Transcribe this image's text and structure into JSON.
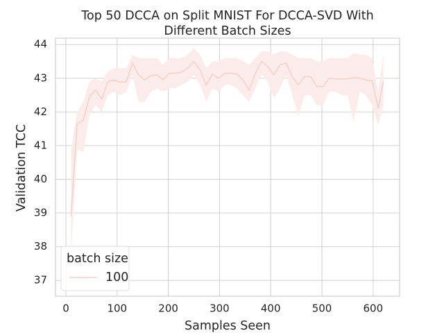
{
  "chart_data": {
    "type": "line",
    "title": [
      "Top 50 DCCA on Split MNIST For DCCA-SVD With",
      "Different Batch Sizes"
    ],
    "x_label": "Samples Seen",
    "y_label": "Validation TCC",
    "legend_title": "batch size",
    "legend_loc": "lower left",
    "grid": true,
    "x": [
      10,
      22,
      34,
      46,
      58,
      70,
      82,
      94,
      106,
      118,
      130,
      142,
      154,
      166,
      178,
      190,
      202,
      214,
      226,
      238,
      250,
      262,
      274,
      286,
      298,
      310,
      322,
      334,
      346,
      358,
      370,
      382,
      394,
      406,
      418,
      430,
      442,
      454,
      466,
      478,
      490,
      502,
      514,
      526,
      538,
      550,
      562,
      574,
      586,
      598,
      610,
      620
    ],
    "series": [
      {
        "name": "100",
        "color": "#f2cfca",
        "band_color": "#fbeceb",
        "values": [
          38.9,
          41.65,
          41.75,
          42.45,
          42.65,
          42.38,
          42.9,
          42.95,
          42.88,
          42.9,
          43.45,
          43.1,
          42.95,
          43.08,
          43.1,
          42.95,
          43.15,
          43.15,
          43.18,
          43.3,
          43.5,
          43.25,
          42.8,
          43.12,
          43.0,
          43.15,
          43.15,
          43.12,
          42.95,
          42.65,
          43.15,
          43.5,
          43.35,
          43.1,
          43.4,
          43.45,
          43.05,
          42.8,
          43.05,
          43.05,
          42.75,
          42.75,
          43.0,
          42.98,
          42.97,
          42.98,
          43.02,
          43.0,
          42.95,
          42.93,
          42.1,
          42.9
        ],
        "ci_lower": [
          37.8,
          40.9,
          40.8,
          41.9,
          42.2,
          42.0,
          42.5,
          42.6,
          42.5,
          42.6,
          43.1,
          42.3,
          42.3,
          42.6,
          42.7,
          42.6,
          42.7,
          42.7,
          42.8,
          42.9,
          43.1,
          42.8,
          42.3,
          42.7,
          42.6,
          42.8,
          42.8,
          42.7,
          42.5,
          42.3,
          42.7,
          43.1,
          42.9,
          42.4,
          42.7,
          43.1,
          42.5,
          41.9,
          42.5,
          42.5,
          42.2,
          42.2,
          42.6,
          42.6,
          42.5,
          42.5,
          41.7,
          42.6,
          42.5,
          42.2,
          41.6,
          42.2
        ],
        "ci_upper": [
          40.9,
          42.0,
          42.3,
          42.9,
          43.0,
          42.9,
          43.2,
          43.3,
          43.3,
          43.3,
          43.7,
          43.6,
          43.6,
          43.6,
          43.6,
          43.4,
          43.6,
          43.6,
          43.6,
          43.7,
          43.9,
          43.7,
          43.3,
          43.5,
          43.5,
          43.6,
          43.6,
          43.6,
          43.5,
          43.4,
          43.6,
          43.8,
          43.8,
          43.7,
          43.8,
          43.8,
          43.7,
          43.6,
          43.6,
          43.6,
          43.5,
          43.5,
          43.6,
          43.6,
          43.6,
          43.6,
          43.75,
          43.7,
          43.7,
          43.6,
          42.6,
          43.7
        ]
      }
    ],
    "xlim": [
      -20.3,
      651.7
    ],
    "ylim": [
      36.53,
      44.19
    ],
    "xticks": [
      0,
      100,
      200,
      300,
      400,
      500,
      600
    ],
    "yticks": [
      37,
      38,
      39,
      40,
      41,
      42,
      43,
      44
    ]
  }
}
